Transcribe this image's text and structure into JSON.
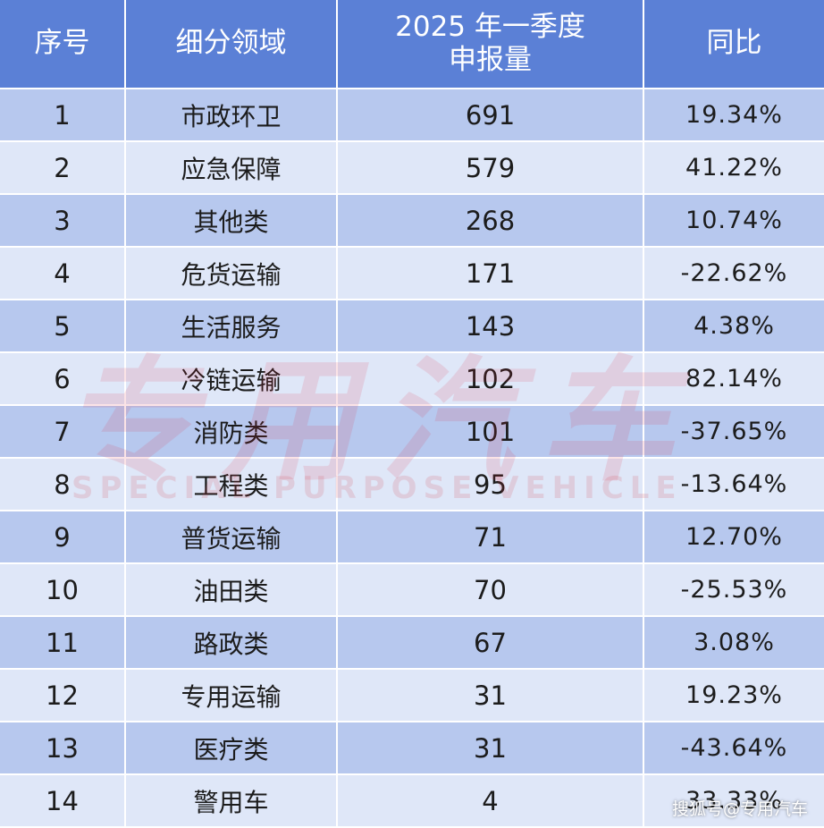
{
  "headers": {
    "index": "序号",
    "category": "细分领域",
    "volume_line1": "2025 年一季度",
    "volume_line2": "申报量",
    "yoy": "同比"
  },
  "rows": [
    {
      "index": "1",
      "category": "市政环卫",
      "volume": "691",
      "yoy": "19.34%"
    },
    {
      "index": "2",
      "category": "应急保障",
      "volume": "579",
      "yoy": "41.22%"
    },
    {
      "index": "3",
      "category": "其他类",
      "volume": "268",
      "yoy": "10.74%"
    },
    {
      "index": "4",
      "category": "危货运输",
      "volume": "171",
      "yoy": "-22.62%"
    },
    {
      "index": "5",
      "category": "生活服务",
      "volume": "143",
      "yoy": "4.38%"
    },
    {
      "index": "6",
      "category": "冷链运输",
      "volume": "102",
      "yoy": "82.14%"
    },
    {
      "index": "7",
      "category": "消防类",
      "volume": "101",
      "yoy": "-37.65%"
    },
    {
      "index": "8",
      "category": "工程类",
      "volume": "95",
      "yoy": "-13.64%"
    },
    {
      "index": "9",
      "category": "普货运输",
      "volume": "71",
      "yoy": "12.70%"
    },
    {
      "index": "10",
      "category": "油田类",
      "volume": "70",
      "yoy": "-25.53%"
    },
    {
      "index": "11",
      "category": "路政类",
      "volume": "67",
      "yoy": "3.08%"
    },
    {
      "index": "12",
      "category": "专用运输",
      "volume": "31",
      "yoy": "19.23%"
    },
    {
      "index": "13",
      "category": "医疗类",
      "volume": "31",
      "yoy": "-43.64%"
    },
    {
      "index": "14",
      "category": "警用车",
      "volume": "4",
      "yoy": "33.33%"
    }
  ],
  "watermark": {
    "logo_text": "专用汽车",
    "logo_subtext": "SPECIAL PURPOSE VEHICLE",
    "credit": "搜狐号@专用汽车"
  },
  "colors": {
    "header_bg": "#5b80d6",
    "row_dark": "#b7c8ee",
    "row_light": "#dfe7f8"
  }
}
